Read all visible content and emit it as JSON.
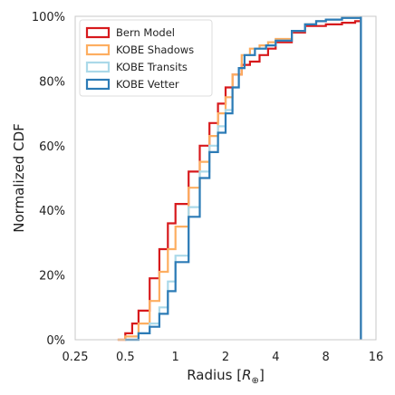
{
  "chart_data": {
    "type": "line",
    "title": "",
    "xlabel": "Radius [R⊕]",
    "xlabel_parts": {
      "main": "Radius [",
      "symbol": "R",
      "subscript": "⊕",
      "end": "]"
    },
    "ylabel": "Normalized CDF",
    "x_scale": "log2",
    "xlim": [
      0.25,
      16
    ],
    "ylim": [
      0,
      1
    ],
    "x_ticks": [
      0.25,
      0.5,
      1,
      2,
      4,
      8,
      16
    ],
    "x_tick_labels": [
      "0.25",
      "0.5",
      "1",
      "2",
      "4",
      "8",
      "16"
    ],
    "y_ticks": [
      0,
      0.2,
      0.4,
      0.6,
      0.8,
      1.0
    ],
    "y_tick_labels": [
      "0%",
      "20%",
      "40%",
      "60%",
      "80%",
      "100%"
    ],
    "grid": "off",
    "legend_position": "top-left",
    "step_style": "stepped",
    "series": [
      {
        "name": "Bern Model",
        "color": "#d7191c",
        "x": [
          0.45,
          0.5,
          0.55,
          0.6,
          0.7,
          0.8,
          0.9,
          1.0,
          1.2,
          1.4,
          1.6,
          1.8,
          2.0,
          2.2,
          2.5,
          2.8,
          3.2,
          3.6,
          4.0,
          5.0,
          6.0,
          8.0,
          10.0,
          12.0,
          13.0
        ],
        "y": [
          0.0,
          0.02,
          0.05,
          0.09,
          0.19,
          0.28,
          0.36,
          0.42,
          0.52,
          0.6,
          0.67,
          0.73,
          0.78,
          0.82,
          0.85,
          0.86,
          0.88,
          0.9,
          0.92,
          0.95,
          0.97,
          0.975,
          0.98,
          0.985,
          1.0
        ]
      },
      {
        "name": "KOBE Shadows",
        "color": "#fdae61",
        "x": [
          0.45,
          0.5,
          0.6,
          0.7,
          0.8,
          0.9,
          1.0,
          1.2,
          1.4,
          1.6,
          1.8,
          2.0,
          2.2,
          2.5,
          2.8,
          3.2,
          3.6,
          4.0,
          5.0,
          6.0,
          7.0,
          8.0,
          10.0,
          13.0
        ],
        "y": [
          0.0,
          0.01,
          0.05,
          0.12,
          0.21,
          0.28,
          0.35,
          0.47,
          0.55,
          0.63,
          0.7,
          0.75,
          0.82,
          0.88,
          0.9,
          0.91,
          0.92,
          0.93,
          0.955,
          0.975,
          0.985,
          0.99,
          0.995,
          1.0
        ]
      },
      {
        "name": "KOBE Transits",
        "color": "#abd9e9",
        "x": [
          0.5,
          0.6,
          0.7,
          0.8,
          0.9,
          1.0,
          1.2,
          1.4,
          1.6,
          1.8,
          2.0,
          2.2,
          2.4,
          2.6,
          3.0,
          3.5,
          4.0,
          5.0,
          6.0,
          7.0,
          8.0,
          10.0,
          13.0
        ],
        "y": [
          0.0,
          0.02,
          0.05,
          0.1,
          0.18,
          0.26,
          0.41,
          0.52,
          0.6,
          0.66,
          0.71,
          0.78,
          0.84,
          0.88,
          0.9,
          0.91,
          0.925,
          0.955,
          0.975,
          0.985,
          0.99,
          0.995,
          1.0
        ]
      },
      {
        "name": "KOBE Vetter",
        "color": "#2c7bb6",
        "x": [
          0.5,
          0.6,
          0.7,
          0.8,
          0.9,
          1.0,
          1.2,
          1.4,
          1.6,
          1.8,
          2.0,
          2.2,
          2.4,
          2.6,
          3.0,
          3.5,
          4.0,
          5.0,
          6.0,
          7.0,
          8.0,
          10.0,
          13.0
        ],
        "y": [
          0.0,
          0.02,
          0.04,
          0.08,
          0.15,
          0.24,
          0.38,
          0.5,
          0.58,
          0.64,
          0.7,
          0.78,
          0.84,
          0.88,
          0.9,
          0.91,
          0.925,
          0.955,
          0.975,
          0.985,
          0.99,
          0.995,
          1.0
        ]
      }
    ]
  }
}
